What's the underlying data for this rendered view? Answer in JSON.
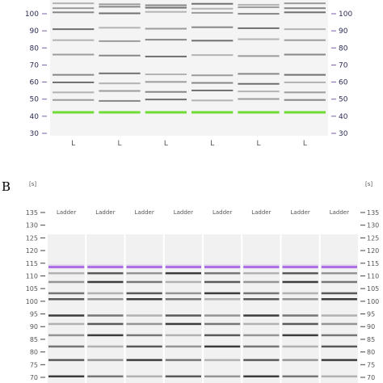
{
  "panel_a": {
    "letter": "",
    "scale_ticks": [
      "100",
      "90",
      "80",
      "70",
      "60",
      "50",
      "40",
      "30"
    ],
    "tick_values": [
      100,
      90,
      80,
      70,
      60,
      50,
      40,
      30
    ],
    "lane_labels": [
      "L",
      "L",
      "L",
      "L",
      "L",
      "L"
    ],
    "marker_value": 43,
    "marker_color": "#6fdc36",
    "band_values": [
      106,
      104,
      101,
      92,
      85,
      76,
      65,
      60,
      55,
      50
    ],
    "scale_color": "#7a5ea8"
  },
  "panel_b": {
    "letter": "B",
    "unit_label": "[s]",
    "scale_ticks": [
      "135",
      "130",
      "125",
      "120",
      "115",
      "110",
      "105",
      "100",
      "95",
      "90",
      "85",
      "80",
      "75",
      "70"
    ],
    "tick_values": [
      135,
      130,
      125,
      120,
      115,
      110,
      105,
      100,
      95,
      90,
      85,
      80,
      75,
      70
    ],
    "lane_labels": [
      "Ladder",
      "Ladder",
      "Ladder",
      "Ladder",
      "Ladder",
      "Ladder",
      "Ladder",
      "Ladder"
    ],
    "marker_value": 113.5,
    "marker_color": "#9b4fe0",
    "band_values": [
      111,
      108,
      104,
      101,
      95,
      91,
      87,
      83,
      77,
      71
    ]
  }
}
